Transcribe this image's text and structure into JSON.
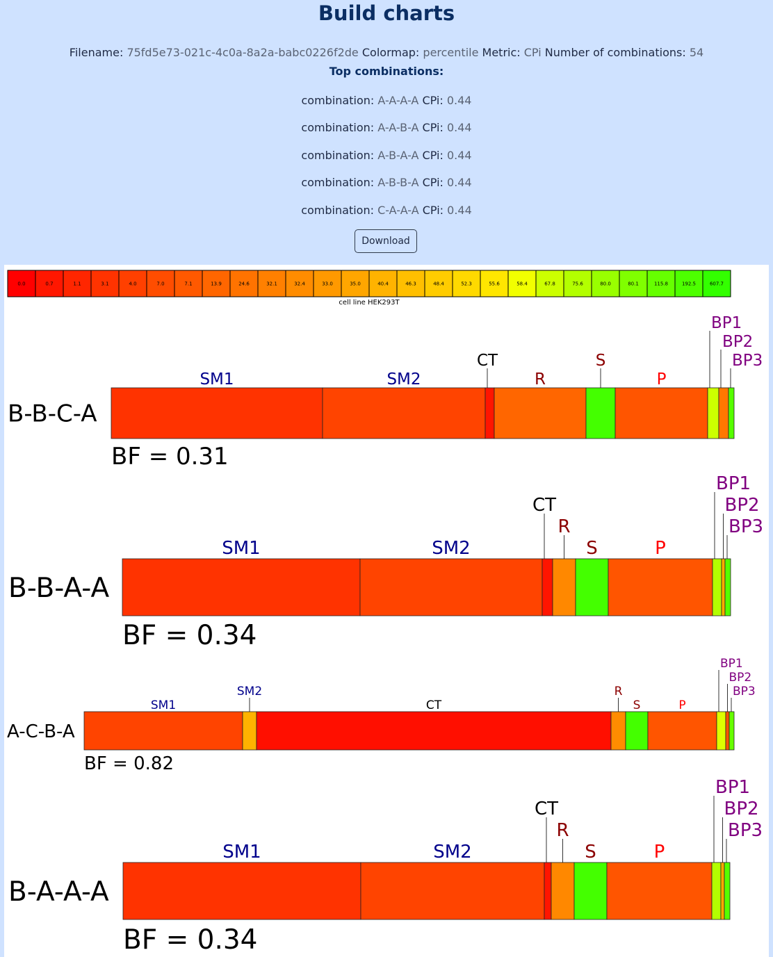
{
  "header": {
    "title": "Build charts",
    "filename_label": "Filename:",
    "filename": "75fd5e73-021c-4c0a-8a2a-babc0226f2de",
    "colormap_label": "Colormap:",
    "colormap": "percentile",
    "metric_label": "Metric:",
    "metric": "CPi",
    "combinations_label": "Number of combinations:",
    "combinations_count": "54",
    "top_heading": "Top combinations:",
    "combo_label": "combination:",
    "top_combinations": [
      {
        "combination": "A-A-A-A",
        "metric_label": "CPi:",
        "value": "0.44"
      },
      {
        "combination": "A-A-B-A",
        "metric_label": "CPi:",
        "value": "0.44"
      },
      {
        "combination": "A-B-A-A",
        "metric_label": "CPi:",
        "value": "0.44"
      },
      {
        "combination": "A-B-B-A",
        "metric_label": "CPi:",
        "value": "0.44"
      },
      {
        "combination": "C-A-A-A",
        "metric_label": "CPi:",
        "value": "0.44"
      }
    ],
    "download_label": "Download"
  },
  "chart_data": {
    "type": "stacked-bar",
    "legend": {
      "values": [
        "0.0",
        "0.7",
        "1.1",
        "3.1",
        "4.0",
        "7.0",
        "7.1",
        "13.9",
        "24.6",
        "32.1",
        "32.4",
        "33.0",
        "35.0",
        "40.4",
        "46.3",
        "48.4",
        "52.3",
        "55.6",
        "58.4",
        "67.8",
        "75.6",
        "80.0",
        "80.1",
        "115.8",
        "192.5",
        "607.7"
      ],
      "colors": [
        "#ff0000",
        "#ff1700",
        "#ff2600",
        "#ff3300",
        "#ff4000",
        "#ff4d00",
        "#ff5900",
        "#ff6600",
        "#ff7300",
        "#ff8000",
        "#ff8c00",
        "#ff9900",
        "#ffa600",
        "#ffb300",
        "#ffbf00",
        "#ffcc00",
        "#ffd900",
        "#ffe600",
        "#f2ff00",
        "#ccff00",
        "#b3ff00",
        "#99ff00",
        "#80ff00",
        "#66ff00",
        "#4dff00",
        "#33ff00"
      ],
      "caption": "cell line HEK293T"
    },
    "segment_names": [
      "SM1",
      "SM2",
      "CT",
      "R",
      "S",
      "P",
      "BP1",
      "BP2",
      "BP3"
    ],
    "segment_label_colors": {
      "SM1": "#00008b",
      "SM2": "#00008b",
      "CT": "#000000",
      "R": "#8b0000",
      "S": "#8b0000",
      "P": "#ff0000",
      "BP1": "#800080",
      "BP2": "#800080",
      "BP3": "#800080"
    },
    "charts": [
      {
        "combination": "B-B-C-A",
        "bf_label": "BF = 0.31",
        "segments": [
          {
            "name": "SM1",
            "size": 304,
            "color": "#ff3300"
          },
          {
            "name": "SM2",
            "size": 234,
            "color": "#ff4400"
          },
          {
            "name": "CT",
            "size": 13,
            "color": "#ff1500"
          },
          {
            "name": "R",
            "size": 132,
            "color": "#ff6600"
          },
          {
            "name": "S",
            "size": 42,
            "color": "#44ff00"
          },
          {
            "name": "P",
            "size": 133,
            "color": "#ff5500"
          },
          {
            "name": "BP1",
            "size": 16,
            "color": "#ccff00"
          },
          {
            "name": "BP2",
            "size": 14,
            "color": "#ff7700"
          },
          {
            "name": "BP3",
            "size": 8,
            "color": "#55ff00"
          }
        ]
      },
      {
        "combination": "B-B-A-A",
        "bf_label": "BF = 0.34",
        "segments": [
          {
            "name": "SM1",
            "size": 342,
            "color": "#ff3300"
          },
          {
            "name": "SM2",
            "size": 262,
            "color": "#ff4400"
          },
          {
            "name": "CT",
            "size": 15,
            "color": "#ff1500"
          },
          {
            "name": "R",
            "size": 33,
            "color": "#ff8800"
          },
          {
            "name": "S",
            "size": 47,
            "color": "#44ff00"
          },
          {
            "name": "P",
            "size": 150,
            "color": "#ff5500"
          },
          {
            "name": "BP1",
            "size": 13,
            "color": "#b3ff00"
          },
          {
            "name": "BP2",
            "size": 5,
            "color": "#ffaa00"
          },
          {
            "name": "BP3",
            "size": 8,
            "color": "#55ff00"
          }
        ]
      },
      {
        "combination": "A-C-B-A",
        "bf_label": "BF = 0.82",
        "segments": [
          {
            "name": "SM1",
            "size": 228,
            "color": "#ff4400"
          },
          {
            "name": "SM2",
            "size": 20,
            "color": "#ffb300"
          },
          {
            "name": "CT",
            "size": 510,
            "color": "#ff0f00"
          },
          {
            "name": "R",
            "size": 21,
            "color": "#ff8c00"
          },
          {
            "name": "S",
            "size": 32,
            "color": "#44ff00"
          },
          {
            "name": "P",
            "size": 99,
            "color": "#ff5500"
          },
          {
            "name": "BP1",
            "size": 13,
            "color": "#ddff00"
          },
          {
            "name": "BP2",
            "size": 5,
            "color": "#ff5500"
          },
          {
            "name": "BP3",
            "size": 7,
            "color": "#66ff00"
          }
        ]
      },
      {
        "combination": "B-A-A-A",
        "bf_label": "BF = 0.34",
        "segments": [
          {
            "name": "SM1",
            "size": 342,
            "color": "#ff3300"
          },
          {
            "name": "SM2",
            "size": 264,
            "color": "#ff4400"
          },
          {
            "name": "CT",
            "size": 10,
            "color": "#ff1500"
          },
          {
            "name": "R",
            "size": 33,
            "color": "#ff8800"
          },
          {
            "name": "S",
            "size": 47,
            "color": "#44ff00"
          },
          {
            "name": "P",
            "size": 151,
            "color": "#ff5500"
          },
          {
            "name": "BP1",
            "size": 13,
            "color": "#b3ff00"
          },
          {
            "name": "BP2",
            "size": 5,
            "color": "#ffaa00"
          },
          {
            "name": "BP3",
            "size": 8,
            "color": "#55ff00"
          }
        ]
      }
    ]
  }
}
